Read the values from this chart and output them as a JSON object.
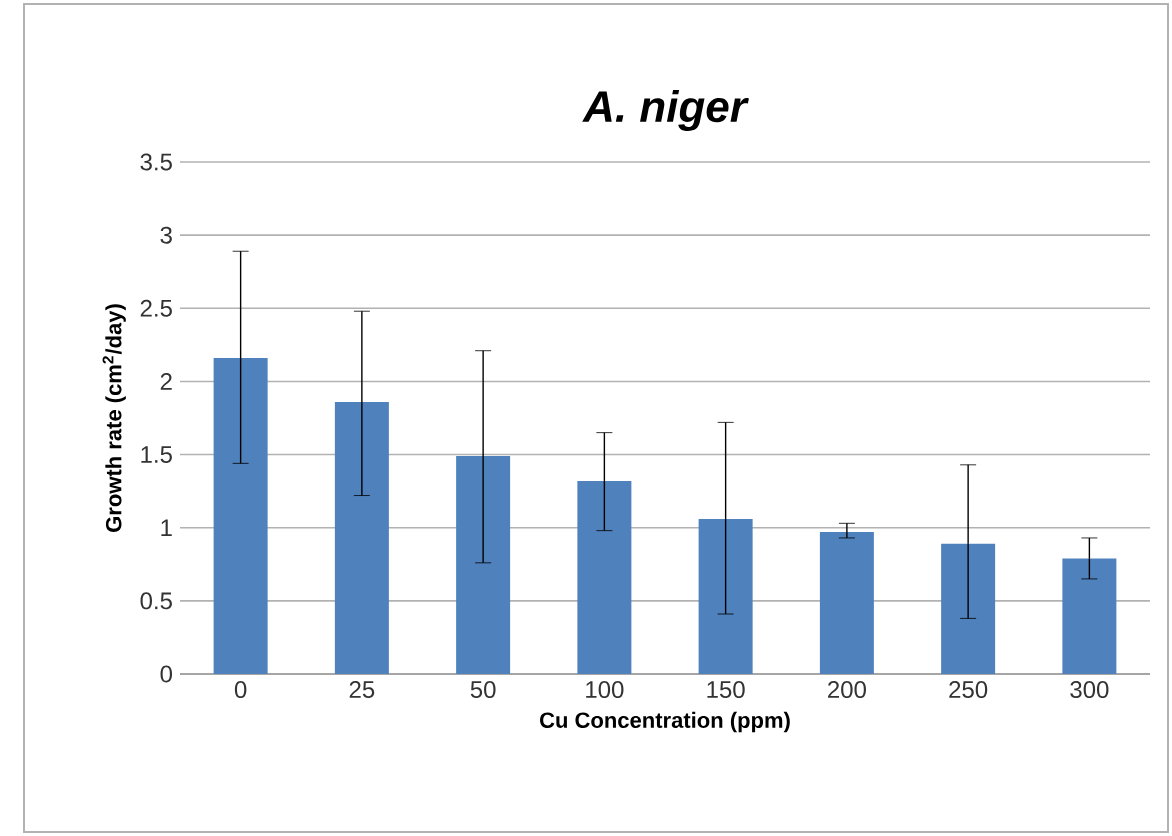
{
  "chart_data": {
    "type": "bar",
    "title": "A. niger",
    "xlabel": "Cu Concentration (ppm)",
    "ylabel": "Growth rate (cm$^{2}$/day)",
    "categories": [
      "0",
      "25",
      "50",
      "100",
      "150",
      "200",
      "250",
      "300"
    ],
    "values": [
      2.16,
      1.86,
      1.49,
      1.32,
      1.06,
      0.97,
      0.89,
      0.79
    ],
    "errors": [
      [
        1.44,
        2.89
      ],
      [
        1.22,
        2.48
      ],
      [
        0.76,
        2.21
      ],
      [
        0.98,
        1.65
      ],
      [
        0.41,
        1.72
      ],
      [
        0.93,
        1.03
      ],
      [
        0.38,
        1.43
      ],
      [
        0.65,
        0.93
      ]
    ],
    "color": "#4f81bd",
    "ylim": [
      0,
      3.5
    ],
    "yticks": [
      0,
      0.5,
      1,
      1.5,
      2,
      2.5,
      3,
      3.5
    ],
    "grid": "y"
  }
}
